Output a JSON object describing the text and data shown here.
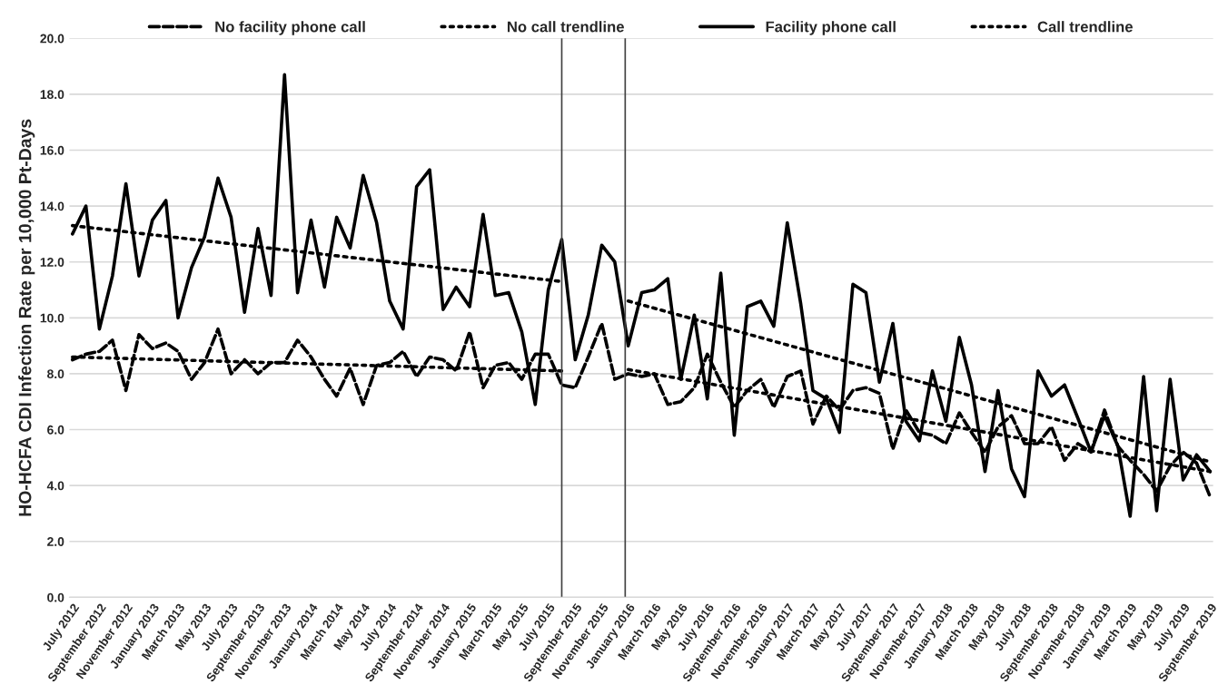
{
  "chart_data": {
    "type": "line",
    "ylabel": "HO-HCFA CDI Infection Rate per 10,000 Pt-Days",
    "x": [
      "2012-07",
      "2012-08",
      "2012-09",
      "2012-10",
      "2012-11",
      "2012-12",
      "2013-01",
      "2013-02",
      "2013-03",
      "2013-04",
      "2013-05",
      "2013-06",
      "2013-07",
      "2013-08",
      "2013-09",
      "2013-10",
      "2013-11",
      "2013-12",
      "2014-01",
      "2014-02",
      "2014-03",
      "2014-04",
      "2014-05",
      "2014-06",
      "2014-07",
      "2014-08",
      "2014-09",
      "2014-10",
      "2014-11",
      "2014-12",
      "2015-01",
      "2015-02",
      "2015-03",
      "2015-04",
      "2015-05",
      "2015-06",
      "2015-07",
      "2015-08",
      "2015-09",
      "2015-10",
      "2015-11",
      "2015-12",
      "2016-01",
      "2016-02",
      "2016-03",
      "2016-04",
      "2016-05",
      "2016-06",
      "2016-07",
      "2016-08",
      "2016-09",
      "2016-10",
      "2016-11",
      "2016-12",
      "2017-01",
      "2017-02",
      "2017-03",
      "2017-04",
      "2017-05",
      "2017-06",
      "2017-07",
      "2017-08",
      "2017-09",
      "2017-10",
      "2017-11",
      "2017-12",
      "2018-01",
      "2018-02",
      "2018-03",
      "2018-04",
      "2018-05",
      "2018-06",
      "2018-07",
      "2018-08",
      "2018-09",
      "2018-10",
      "2018-11",
      "2018-12",
      "2019-01",
      "2019-02",
      "2019-03",
      "2019-04",
      "2019-05",
      "2019-06",
      "2019-07",
      "2019-08",
      "2019-09"
    ],
    "series": [
      {
        "name": "No facility phone call",
        "color": "#000000",
        "line_style": "dashed",
        "values": [
          8.5,
          8.7,
          8.8,
          9.2,
          7.4,
          9.4,
          8.9,
          9.1,
          8.8,
          7.8,
          8.4,
          9.6,
          8.0,
          8.5,
          8.0,
          8.4,
          8.4,
          9.2,
          8.6,
          7.8,
          7.2,
          8.2,
          6.9,
          8.3,
          8.4,
          8.8,
          7.9,
          8.6,
          8.5,
          8.1,
          9.5,
          7.5,
          8.3,
          8.4,
          7.8,
          8.7,
          8.7,
          7.6,
          7.5,
          8.6,
          9.8,
          7.8,
          8.0,
          7.9,
          8.0,
          6.9,
          7.0,
          7.5,
          8.7,
          7.7,
          6.8,
          7.4,
          7.8,
          6.8,
          7.9,
          8.1,
          6.2,
          7.2,
          6.7,
          7.4,
          7.5,
          7.3,
          5.3,
          6.7,
          5.9,
          5.8,
          5.5,
          6.6,
          5.9,
          5.2,
          6.1,
          6.5,
          5.5,
          5.5,
          6.1,
          4.9,
          5.5,
          5.2,
          6.7,
          5.4,
          4.9,
          4.4,
          3.8,
          4.7,
          5.2,
          4.8,
          3.6
        ]
      },
      {
        "name": "No call trendline",
        "color": "#000000",
        "line_style": "dotted",
        "x": [
          "2012-07",
          "2015-08",
          "2015-10",
          "2016-01",
          "2019-09"
        ],
        "values": [
          8.6,
          8.1,
          null,
          8.15,
          4.5
        ]
      },
      {
        "name": "Facility phone call",
        "color": "#000000",
        "line_style": "solid",
        "values": [
          13.0,
          14.0,
          9.6,
          11.5,
          14.8,
          11.5,
          13.5,
          14.2,
          10.0,
          11.8,
          12.9,
          15.0,
          13.6,
          10.2,
          13.2,
          10.8,
          18.7,
          10.9,
          13.5,
          11.1,
          13.6,
          12.5,
          15.1,
          13.4,
          10.6,
          9.6,
          14.7,
          15.3,
          10.3,
          11.1,
          10.4,
          13.7,
          10.8,
          10.9,
          9.5,
          6.9,
          11.0,
          12.8,
          8.5,
          10.1,
          12.6,
          12.0,
          9.0,
          10.9,
          11.0,
          11.4,
          7.8,
          10.1,
          7.1,
          11.6,
          5.8,
          10.4,
          10.6,
          9.7,
          13.4,
          10.5,
          7.4,
          7.1,
          5.9,
          11.2,
          10.9,
          7.7,
          9.8,
          6.3,
          5.6,
          8.1,
          6.3,
          9.3,
          7.6,
          4.5,
          7.4,
          4.6,
          3.6,
          8.1,
          7.2,
          7.6,
          6.4,
          5.2,
          6.5,
          5.4,
          2.9,
          7.9,
          3.1,
          7.8,
          4.2,
          5.1,
          4.5
        ]
      },
      {
        "name": "Call trendline",
        "color": "#000000",
        "line_style": "dotted",
        "x": [
          "2012-07",
          "2015-08",
          "2015-10",
          "2016-01",
          "2019-09"
        ],
        "values": [
          13.3,
          11.3,
          null,
          10.6,
          4.85
        ]
      }
    ],
    "xlim": [
      "2012-06-24",
      "2019-09-08"
    ],
    "xticks": [
      {
        "value": "2012-07",
        "label": "July 2012"
      },
      {
        "value": "2012-09",
        "label": "September 2012"
      },
      {
        "value": "2012-11",
        "label": "November 2012"
      },
      {
        "value": "2013-01",
        "label": "January 2013"
      },
      {
        "value": "2013-03",
        "label": "March 2013"
      },
      {
        "value": "2013-05",
        "label": "May 2013"
      },
      {
        "value": "2013-07",
        "label": "July 2013"
      },
      {
        "value": "2013-09",
        "label": "September 2013"
      },
      {
        "value": "2013-11",
        "label": "November 2013"
      },
      {
        "value": "2014-01",
        "label": "January 2014"
      },
      {
        "value": "2014-03",
        "label": "March 2014"
      },
      {
        "value": "2014-05",
        "label": "May 2014"
      },
      {
        "value": "2014-07",
        "label": "July 2014"
      },
      {
        "value": "2014-09",
        "label": "September 2014"
      },
      {
        "value": "2014-11",
        "label": "November 2014"
      },
      {
        "value": "2015-01",
        "label": "January 2015"
      },
      {
        "value": "2015-03",
        "label": "March 2015"
      },
      {
        "value": "2015-05",
        "label": "May 2015"
      },
      {
        "value": "2015-07",
        "label": "July 2015"
      },
      {
        "value": "2015-09",
        "label": "September 2015"
      },
      {
        "value": "2015-11",
        "label": "November 2015"
      },
      {
        "value": "2016-01",
        "label": "January 2016"
      },
      {
        "value": "2016-03",
        "label": "March 2016"
      },
      {
        "value": "2016-05",
        "label": "May 2016"
      },
      {
        "value": "2016-07",
        "label": "July 2016"
      },
      {
        "value": "2016-09",
        "label": "September 2016"
      },
      {
        "value": "2016-11",
        "label": "November 2016"
      },
      {
        "value": "2017-01",
        "label": "January 2017"
      },
      {
        "value": "2017-03",
        "label": "March 2017"
      },
      {
        "value": "2017-05",
        "label": "May 2017"
      },
      {
        "value": "2017-07",
        "label": "July 2017"
      },
      {
        "value": "2017-09",
        "label": "September 2017"
      },
      {
        "value": "2017-11",
        "label": "November 2017"
      },
      {
        "value": "2018-01",
        "label": "January 2018"
      },
      {
        "value": "2018-03",
        "label": "March 2018"
      },
      {
        "value": "2018-05",
        "label": "May 2018"
      },
      {
        "value": "2018-07",
        "label": "July 2018"
      },
      {
        "value": "2018-09",
        "label": "September 2018"
      },
      {
        "value": "2018-11",
        "label": "November 2018"
      },
      {
        "value": "2019-01",
        "label": "January 2019"
      },
      {
        "value": "2019-03",
        "label": "March 2019"
      },
      {
        "value": "2019-05",
        "label": "May 2019"
      },
      {
        "value": "2019-07",
        "label": "July 2019"
      },
      {
        "value": "2019-09",
        "label": "September 2019"
      }
    ],
    "ylim": [
      0,
      20
    ],
    "yticks": [
      {
        "value": 0,
        "label": "0.0"
      },
      {
        "value": 2,
        "label": "2.0"
      },
      {
        "value": 4,
        "label": "4.0"
      },
      {
        "value": 6,
        "label": "6.0"
      },
      {
        "value": 8,
        "label": "8.0"
      },
      {
        "value": 10,
        "label": "10.0"
      },
      {
        "value": 12,
        "label": "12.0"
      },
      {
        "value": 14,
        "label": "14.0"
      },
      {
        "value": 16,
        "label": "16.0"
      },
      {
        "value": 18,
        "label": "18.0"
      },
      {
        "value": 20,
        "label": "20.0"
      }
    ],
    "ref_lines": [
      {
        "axis": "x",
        "value": "2015-08",
        "color": "#404040"
      },
      {
        "axis": "x",
        "value": "2015-12-25",
        "color": "#404040"
      }
    ],
    "grid": "y",
    "legend": "top"
  }
}
